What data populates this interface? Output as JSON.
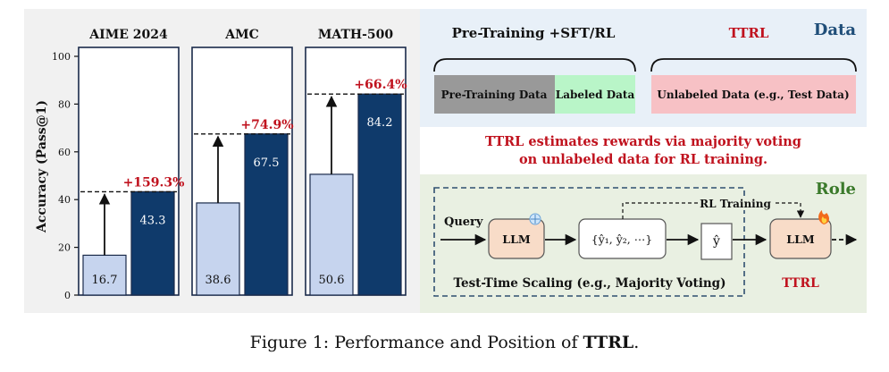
{
  "chart_data": {
    "type": "bar",
    "ylabel": "Accuracy (Pass@1)",
    "ylim": [
      0,
      100
    ],
    "yticks": [
      0,
      20,
      40,
      60,
      80,
      100
    ],
    "series": [
      {
        "color": "#c6d4ee"
      },
      {
        "color": "#0f3a6b"
      }
    ],
    "groups": [
      {
        "title": "AIME 2024",
        "values": [
          16.7,
          43.3
        ],
        "labels": [
          "16.7",
          "43.3"
        ],
        "gain": "+159.3%"
      },
      {
        "title": "AMC",
        "values": [
          38.6,
          67.5
        ],
        "labels": [
          "38.6",
          "67.5"
        ],
        "gain": "+74.9%"
      },
      {
        "title": "MATH-500",
        "values": [
          50.6,
          84.2
        ],
        "labels": [
          "50.6",
          "84.2"
        ],
        "gain": "+66.4%"
      }
    ],
    "gain_color": "#c0121e"
  },
  "data_panel": {
    "title": "Data",
    "pretrain_heading": "Pre-Training +SFT/RL",
    "ttrl_heading": "TTRL",
    "pretrain_data": "Pre-Training Data",
    "labeled_data": "Labeled Data",
    "unlabeled_data": "Unlabeled Data (e.g., Test Data)",
    "pretrain_color": "#999999",
    "labeled_color": "#b9f5c8",
    "unlabeled_color": "#f7c1c5"
  },
  "statement": {
    "line1": "TTRL estimates rewards via majority voting",
    "line2": "on unlabeled data for RL training."
  },
  "role_panel": {
    "title": "Role",
    "query": "Query",
    "llm_left": "LLM",
    "answers": "{ŷ₁, ŷ₂, ⋯}",
    "y_hat": "ŷ",
    "rl_training": "RL Training",
    "llm_right": "LLM",
    "tts_label": "Test-Time Scaling (e.g., Majority Voting)",
    "ttrl": "TTRL"
  },
  "caption": {
    "prefix": "Figure 1: Performance and Position of ",
    "bold": "TTRL",
    "suffix": "."
  }
}
